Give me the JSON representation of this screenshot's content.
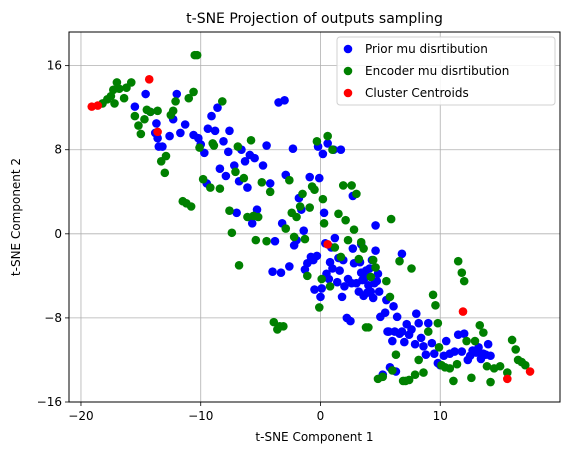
{
  "chart_data": {
    "type": "scatter",
    "title": "t-SNE Projection of outputs sampling",
    "xlabel": "t-SNE Component 1",
    "ylabel": "t-SNE Component 2",
    "xlim": [
      -21,
      20
    ],
    "ylim": [
      -16,
      19.2
    ],
    "xticks": [
      -20,
      -10,
      0,
      10
    ],
    "yticks": [
      -16,
      -8,
      0,
      8,
      16
    ],
    "grid": true,
    "legend_position": "top-right",
    "series": [
      {
        "name": "Prior mu disrtibution",
        "color": "#0000ff",
        "points": [
          [
            -15.5,
            12.1
          ],
          [
            -14.6,
            13.3
          ],
          [
            -14.2,
            11.6
          ],
          [
            -13.8,
            9.6
          ],
          [
            -13.7,
            10.5
          ],
          [
            -13.6,
            9.1
          ],
          [
            -13.5,
            8.3
          ],
          [
            -13.2,
            8.3
          ],
          [
            -12.6,
            9.3
          ],
          [
            -12.3,
            10.9
          ],
          [
            -12.0,
            13.3
          ],
          [
            -11.7,
            9.6
          ],
          [
            -11.3,
            10.4
          ],
          [
            -10.6,
            9.4
          ],
          [
            -10.2,
            9.1
          ],
          [
            -10.0,
            8.5
          ],
          [
            -9.7,
            7.7
          ],
          [
            -9.5,
            4.8
          ],
          [
            -9.4,
            10.0
          ],
          [
            -9.1,
            11.2
          ],
          [
            -8.8,
            9.8
          ],
          [
            -8.6,
            12.0
          ],
          [
            -8.4,
            6.2
          ],
          [
            -8.1,
            8.8
          ],
          [
            -7.9,
            5.5
          ],
          [
            -7.7,
            7.8
          ],
          [
            -7.6,
            9.8
          ],
          [
            -7.2,
            6.5
          ],
          [
            -7.0,
            2.0
          ],
          [
            -6.8,
            5.0
          ],
          [
            -6.6,
            8.0
          ],
          [
            -6.3,
            6.9
          ],
          [
            -6.1,
            4.4
          ],
          [
            -5.9,
            7.5
          ],
          [
            -5.7,
            1.0
          ],
          [
            -5.5,
            7.2
          ],
          [
            -5.3,
            2.3
          ],
          [
            -4.8,
            6.5
          ],
          [
            -4.5,
            8.4
          ],
          [
            -4.2,
            4.8
          ],
          [
            -4.0,
            -3.6
          ],
          [
            -3.8,
            -0.7
          ],
          [
            -3.5,
            12.5
          ],
          [
            -3.3,
            -3.7
          ],
          [
            -3.2,
            1.0
          ],
          [
            -3.0,
            12.7
          ],
          [
            -2.9,
            5.6
          ],
          [
            -2.6,
            -3.1
          ],
          [
            -2.3,
            8.1
          ],
          [
            -2.2,
            -1.1
          ],
          [
            -2.0,
            -0.6
          ],
          [
            -1.8,
            3.4
          ],
          [
            -1.6,
            2.3
          ],
          [
            -1.4,
            0.3
          ],
          [
            -1.3,
            -3.4
          ],
          [
            -1.1,
            -2.8
          ],
          [
            -0.9,
            5.4
          ],
          [
            -0.8,
            -2.2
          ],
          [
            -0.6,
            -2.5
          ],
          [
            -0.5,
            -5.3
          ],
          [
            -0.3,
            -2.1
          ],
          [
            -0.2,
            8.3
          ],
          [
            -0.1,
            5.3
          ],
          [
            0.0,
            -6.0
          ],
          [
            0.1,
            -5.2
          ],
          [
            0.2,
            7.6
          ],
          [
            0.3,
            2.0
          ],
          [
            0.4,
            -0.9
          ],
          [
            0.5,
            -3.8
          ],
          [
            0.6,
            8.6
          ],
          [
            0.7,
            -4.3
          ],
          [
            0.8,
            -2.7
          ],
          [
            0.9,
            -1.3
          ],
          [
            1.0,
            -3.3
          ],
          [
            1.1,
            8.0
          ],
          [
            1.2,
            -0.4
          ],
          [
            1.4,
            -4.6
          ],
          [
            1.5,
            -2.3
          ],
          [
            1.6,
            -3.5
          ],
          [
            1.7,
            8.0
          ],
          [
            1.8,
            -6.0
          ],
          [
            1.9,
            -2.5
          ],
          [
            2.0,
            -5.0
          ],
          [
            2.2,
            -8.0
          ],
          [
            2.3,
            -4.3
          ],
          [
            2.5,
            -8.3
          ],
          [
            2.6,
            -4.7
          ],
          [
            2.7,
            -1.4
          ],
          [
            2.8,
            -2.8
          ],
          [
            3.0,
            -4.7
          ],
          [
            3.2,
            -5.5
          ],
          [
            3.3,
            -2.7
          ],
          [
            3.4,
            -3.7
          ],
          [
            3.5,
            -4.4
          ],
          [
            3.6,
            -5.9
          ],
          [
            3.7,
            -4.2
          ],
          [
            3.8,
            -3.5
          ],
          [
            3.9,
            -5.6
          ],
          [
            4.0,
            -4.9
          ],
          [
            4.1,
            -3.3
          ],
          [
            4.2,
            -5.5
          ],
          [
            4.3,
            -2.5
          ],
          [
            4.4,
            -6.1
          ],
          [
            4.5,
            -4.7
          ],
          [
            4.6,
            -1.6
          ],
          [
            4.7,
            -4.5
          ],
          [
            4.8,
            -3.8
          ],
          [
            4.9,
            -5.5
          ],
          [
            5.0,
            -7.9
          ],
          [
            5.2,
            -13.4
          ],
          [
            5.4,
            -7.5
          ],
          [
            5.5,
            -6.3
          ],
          [
            5.6,
            -9.3
          ],
          [
            5.7,
            -9.3
          ],
          [
            5.8,
            -12.7
          ],
          [
            6.0,
            -10.2
          ],
          [
            6.1,
            -6.9
          ],
          [
            6.2,
            -9.3
          ],
          [
            6.3,
            -13.1
          ],
          [
            6.4,
            -7.9
          ],
          [
            6.6,
            -9.5
          ],
          [
            6.8,
            -9.3
          ],
          [
            7.0,
            -10.3
          ],
          [
            7.2,
            -8.6
          ],
          [
            7.4,
            -9.6
          ],
          [
            7.6,
            -9.1
          ],
          [
            7.9,
            -10.5
          ],
          [
            8.0,
            -7.6
          ],
          [
            8.2,
            -8.5
          ],
          [
            8.4,
            -9.9
          ],
          [
            8.6,
            -10.7
          ],
          [
            8.8,
            -11.5
          ],
          [
            9.0,
            -8.5
          ],
          [
            9.3,
            -10.4
          ],
          [
            9.5,
            -11.4
          ],
          [
            9.8,
            -12.3
          ],
          [
            10.0,
            -12.5
          ],
          [
            10.3,
            -11.6
          ],
          [
            10.5,
            -10.2
          ],
          [
            10.8,
            -11.4
          ],
          [
            11.2,
            -11.2
          ],
          [
            11.5,
            -9.6
          ],
          [
            11.8,
            -11.2
          ],
          [
            12.0,
            -9.5
          ],
          [
            12.3,
            -12.0
          ],
          [
            12.5,
            -11.6
          ],
          [
            12.7,
            -11.1
          ],
          [
            13.0,
            -11.3
          ],
          [
            13.2,
            -10.8
          ],
          [
            13.4,
            -11.9
          ],
          [
            13.6,
            -11.4
          ],
          [
            13.8,
            -11.5
          ],
          [
            14.0,
            -10.5
          ],
          [
            14.2,
            -11.6
          ],
          [
            6.8,
            -1.9
          ],
          [
            4.6,
            0.8
          ],
          [
            3.4,
            -1.0
          ],
          [
            2.7,
            3.6
          ]
        ]
      },
      {
        "name": "Encoder mu disrtibution",
        "color": "#008000",
        "points": [
          [
            -18.2,
            12.4
          ],
          [
            -17.8,
            12.8
          ],
          [
            -17.5,
            13.1
          ],
          [
            -17.3,
            13.7
          ],
          [
            -17.2,
            12.4
          ],
          [
            -17.0,
            14.4
          ],
          [
            -16.8,
            13.8
          ],
          [
            -16.4,
            12.9
          ],
          [
            -16.2,
            13.9
          ],
          [
            -15.8,
            14.4
          ],
          [
            -15.5,
            11.2
          ],
          [
            -15.2,
            10.3
          ],
          [
            -15.0,
            9.5
          ],
          [
            -14.7,
            10.9
          ],
          [
            -14.5,
            11.8
          ],
          [
            -14.2,
            11.6
          ],
          [
            -13.6,
            11.7
          ],
          [
            -13.3,
            6.9
          ],
          [
            -13.0,
            5.8
          ],
          [
            -12.9,
            7.4
          ],
          [
            -12.5,
            11.3
          ],
          [
            -12.3,
            11.7
          ],
          [
            -11.5,
            3.1
          ],
          [
            -11.2,
            2.9
          ],
          [
            -11.0,
            12.9
          ],
          [
            -10.8,
            2.6
          ],
          [
            -10.6,
            13.5
          ],
          [
            -10.5,
            17.0
          ],
          [
            -10.3,
            17.0
          ],
          [
            -10.1,
            8.2
          ],
          [
            -9.8,
            5.2
          ],
          [
            -9.0,
            8.6
          ],
          [
            -8.4,
            4.3
          ],
          [
            -8.2,
            12.6
          ],
          [
            -7.6,
            2.2
          ],
          [
            -7.4,
            0.1
          ],
          [
            -7.1,
            5.9
          ],
          [
            -6.9,
            8.3
          ],
          [
            -6.8,
            -3.0
          ],
          [
            -6.4,
            5.3
          ],
          [
            -6.1,
            1.6
          ],
          [
            -5.8,
            8.9
          ],
          [
            -5.6,
            1.7
          ],
          [
            -5.4,
            -0.6
          ],
          [
            -5.2,
            1.6
          ],
          [
            -4.9,
            4.9
          ],
          [
            -4.5,
            -0.7
          ],
          [
            -4.2,
            4.0
          ],
          [
            -3.9,
            -8.4
          ],
          [
            -3.6,
            -9.1
          ],
          [
            -3.4,
            -8.8
          ],
          [
            -3.1,
            -8.8
          ],
          [
            -2.9,
            0.5
          ],
          [
            -2.6,
            5.1
          ],
          [
            -2.4,
            2.0
          ],
          [
            -2.2,
            -0.3
          ],
          [
            -2.0,
            1.6
          ],
          [
            -1.7,
            2.6
          ],
          [
            -1.5,
            3.8
          ],
          [
            -1.3,
            -0.5
          ],
          [
            -1.1,
            -4.0
          ],
          [
            -0.9,
            2.5
          ],
          [
            -0.7,
            4.5
          ],
          [
            -0.5,
            4.2
          ],
          [
            -0.3,
            8.8
          ],
          [
            -0.1,
            -7.0
          ],
          [
            0.1,
            -4.3
          ],
          [
            0.2,
            3.3
          ],
          [
            0.3,
            1.0
          ],
          [
            0.6,
            9.3
          ],
          [
            0.8,
            -5.0
          ],
          [
            1.0,
            8.0
          ],
          [
            1.2,
            -1.3
          ],
          [
            1.5,
            1.9
          ],
          [
            1.7,
            -2.2
          ],
          [
            1.9,
            4.6
          ],
          [
            2.1,
            1.3
          ],
          [
            2.3,
            -0.6
          ],
          [
            2.6,
            4.6
          ],
          [
            2.8,
            0.4
          ],
          [
            3.0,
            3.8
          ],
          [
            3.2,
            -2.4
          ],
          [
            3.4,
            -0.8
          ],
          [
            3.6,
            -1.4
          ],
          [
            3.8,
            -8.9
          ],
          [
            4.0,
            -8.9
          ],
          [
            4.2,
            -4.1
          ],
          [
            4.4,
            -2.5
          ],
          [
            4.6,
            -3.2
          ],
          [
            4.8,
            -13.8
          ],
          [
            5.2,
            -13.6
          ],
          [
            5.5,
            -4.5
          ],
          [
            5.8,
            -6.0
          ],
          [
            6.0,
            -13.0
          ],
          [
            6.3,
            -11.5
          ],
          [
            6.6,
            -2.6
          ],
          [
            6.9,
            -14.0
          ],
          [
            7.1,
            -14.0
          ],
          [
            7.4,
            -13.9
          ],
          [
            7.6,
            -3.3
          ],
          [
            7.9,
            -13.4
          ],
          [
            8.2,
            -12.0
          ],
          [
            8.6,
            -13.2
          ],
          [
            9.0,
            -9.3
          ],
          [
            9.4,
            -5.8
          ],
          [
            9.6,
            -6.8
          ],
          [
            9.8,
            -8.5
          ],
          [
            10.1,
            -12.5
          ],
          [
            10.4,
            -12.7
          ],
          [
            10.8,
            -12.8
          ],
          [
            11.1,
            -14.0
          ],
          [
            11.4,
            -12.4
          ],
          [
            11.5,
            -2.6
          ],
          [
            11.8,
            -3.7
          ],
          [
            12.0,
            -4.5
          ],
          [
            12.2,
            -10.2
          ],
          [
            12.6,
            -13.7
          ],
          [
            12.9,
            -10.2
          ],
          [
            13.3,
            -8.7
          ],
          [
            13.6,
            -9.4
          ],
          [
            13.9,
            -12.6
          ],
          [
            14.2,
            -14.1
          ],
          [
            14.5,
            -12.8
          ],
          [
            15.0,
            -12.6
          ],
          [
            15.6,
            -13.2
          ],
          [
            16.0,
            -10.1
          ],
          [
            16.3,
            -11.0
          ],
          [
            16.5,
            -12.0
          ],
          [
            16.8,
            -12.2
          ],
          [
            17.1,
            -12.5
          ],
          [
            -9.2,
            4.4
          ],
          [
            -8.9,
            8.4
          ],
          [
            -12.1,
            12.6
          ],
          [
            9.9,
            -10.8
          ],
          [
            5.9,
            1.4
          ]
        ]
      },
      {
        "name": "Cluster Centroids",
        "color": "#ff0000",
        "points": [
          [
            -19.1,
            12.1
          ],
          [
            -18.6,
            12.2
          ],
          [
            -14.3,
            14.7
          ],
          [
            -13.6,
            9.7
          ],
          [
            0.6,
            -1.0
          ],
          [
            11.9,
            -7.4
          ],
          [
            15.6,
            -13.8
          ],
          [
            17.5,
            -13.1
          ]
        ]
      }
    ]
  }
}
